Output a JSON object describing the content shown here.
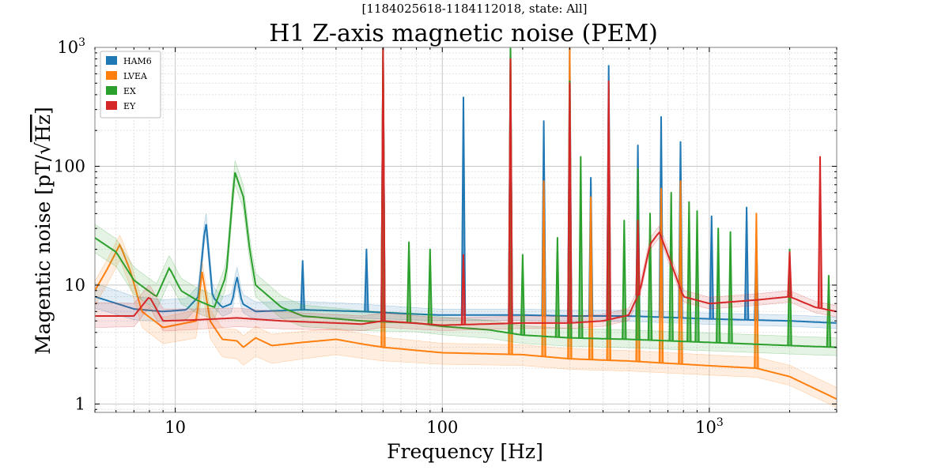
{
  "chart_data": {
    "type": "line",
    "subtitle": "[1184025618-1184112018, state: All]",
    "title": "H1 Z-axis magnetic noise (PEM)",
    "xlabel": "Frequency [Hz]",
    "ylabel_prefix": "Magentic noise [pT/",
    "ylabel_radicand": "Hz",
    "ylabel_suffix": "]",
    "x_scale": "log",
    "y_scale": "log",
    "xlim": [
      5,
      3000
    ],
    "ylim": [
      0.85,
      1000
    ],
    "grid": true,
    "legend_placement": "top-left",
    "x_ticks": [
      {
        "value": 10,
        "label": "10"
      },
      {
        "value": 100,
        "label": "100"
      },
      {
        "value": 1000,
        "label": "10",
        "exponent": "3"
      }
    ],
    "y_ticks": [
      {
        "value": 1,
        "label": "1"
      },
      {
        "value": 10,
        "label": "10"
      },
      {
        "value": 100,
        "label": "100"
      },
      {
        "value": 1000,
        "label": "10",
        "exponent": "3"
      }
    ],
    "series": [
      {
        "name": "HAM6",
        "color": "#1f77b4",
        "baseline": [
          [
            5,
            8.0
          ],
          [
            7,
            6.3
          ],
          [
            9,
            6.0
          ],
          [
            11,
            6.2
          ],
          [
            12.2,
            8
          ],
          [
            13,
            36
          ],
          [
            13.8,
            8
          ],
          [
            15,
            6.5
          ],
          [
            16.3,
            7
          ],
          [
            17,
            12
          ],
          [
            17.8,
            7
          ],
          [
            20,
            6.0
          ],
          [
            30,
            6.2
          ],
          [
            50,
            6.0
          ],
          [
            80,
            5.7
          ],
          [
            100,
            5.6
          ],
          [
            200,
            5.6
          ],
          [
            300,
            5.5
          ],
          [
            500,
            5.5
          ],
          [
            1000,
            5.2
          ],
          [
            2000,
            5.0
          ],
          [
            3000,
            4.8
          ]
        ],
        "band": [
          [
            5,
            0.8,
            1.3
          ],
          [
            20,
            0.85,
            1.2
          ],
          [
            100,
            0.9,
            1.12
          ],
          [
            3000,
            0.9,
            1.12
          ]
        ],
        "peaks": [
          [
            30,
            16
          ],
          [
            52,
            20
          ],
          [
            60,
            1000
          ],
          [
            120,
            380
          ],
          [
            180,
            1000
          ],
          [
            240,
            240
          ],
          [
            300,
            1000
          ],
          [
            360,
            80
          ],
          [
            420,
            700
          ],
          [
            540,
            150
          ],
          [
            660,
            260
          ],
          [
            780,
            160
          ],
          [
            1020,
            38
          ],
          [
            1380,
            45
          ],
          [
            1500,
            28
          ]
        ]
      },
      {
        "name": "LVEA",
        "color": "#ff7f0e",
        "baseline": [
          [
            5,
            9
          ],
          [
            5.6,
            14
          ],
          [
            6.2,
            22
          ],
          [
            6.8,
            13
          ],
          [
            7.5,
            6
          ],
          [
            9,
            4.4
          ],
          [
            12,
            5
          ],
          [
            12.6,
            13
          ],
          [
            13.5,
            5
          ],
          [
            15,
            3.5
          ],
          [
            17,
            3.4
          ],
          [
            18,
            3.0
          ],
          [
            20,
            3.6
          ],
          [
            23,
            3.1
          ],
          [
            30,
            3.3
          ],
          [
            40,
            3.5
          ],
          [
            50,
            3.2
          ],
          [
            60,
            3.0
          ],
          [
            100,
            2.7
          ],
          [
            200,
            2.6
          ],
          [
            300,
            2.4
          ],
          [
            500,
            2.3
          ],
          [
            1000,
            2.1
          ],
          [
            1500,
            2.0
          ],
          [
            2000,
            1.7
          ],
          [
            3000,
            1.1
          ]
        ],
        "band": [
          [
            5,
            0.75,
            1.2
          ],
          [
            20,
            0.7,
            1.25
          ],
          [
            100,
            0.8,
            1.2
          ],
          [
            3000,
            0.85,
            1.25
          ]
        ],
        "peaks": [
          [
            60,
            1000
          ],
          [
            180,
            1000
          ],
          [
            240,
            75
          ],
          [
            300,
            1000
          ],
          [
            360,
            55
          ],
          [
            420,
            60
          ],
          [
            540,
            80
          ],
          [
            660,
            65
          ],
          [
            780,
            75
          ],
          [
            1500,
            40
          ]
        ]
      },
      {
        "name": "EX",
        "color": "#2ca02c",
        "baseline": [
          [
            5,
            25
          ],
          [
            6,
            19
          ],
          [
            7,
            11
          ],
          [
            8.5,
            8
          ],
          [
            9.5,
            14
          ],
          [
            10.5,
            9
          ],
          [
            12,
            7.5
          ],
          [
            14,
            6.5
          ],
          [
            15.5,
            12
          ],
          [
            16.7,
            90
          ],
          [
            18,
            55
          ],
          [
            19,
            20
          ],
          [
            20,
            10
          ],
          [
            25,
            6.5
          ],
          [
            30,
            5.5
          ],
          [
            50,
            5.0
          ],
          [
            80,
            4.8
          ],
          [
            100,
            4.5
          ],
          [
            150,
            4.2
          ],
          [
            200,
            3.8
          ],
          [
            300,
            3.6
          ],
          [
            500,
            3.5
          ],
          [
            1000,
            3.3
          ],
          [
            2000,
            3.1
          ],
          [
            3000,
            3.0
          ]
        ],
        "band": [
          [
            5,
            0.75,
            1.3
          ],
          [
            20,
            0.8,
            1.25
          ],
          [
            100,
            0.85,
            1.2
          ],
          [
            3000,
            0.85,
            1.2
          ]
        ],
        "peaks": [
          [
            60,
            1000
          ],
          [
            75,
            23
          ],
          [
            90,
            20
          ],
          [
            180,
            1000
          ],
          [
            200,
            18
          ],
          [
            270,
            25
          ],
          [
            300,
            520
          ],
          [
            330,
            120
          ],
          [
            420,
            110
          ],
          [
            480,
            35
          ],
          [
            540,
            95
          ],
          [
            600,
            40
          ],
          [
            720,
            60
          ],
          [
            840,
            50
          ],
          [
            900,
            42
          ],
          [
            1080,
            30
          ],
          [
            1200,
            28
          ],
          [
            2000,
            20
          ],
          [
            2800,
            12
          ]
        ]
      },
      {
        "name": "EY",
        "color": "#d62728",
        "baseline": [
          [
            5,
            5.5
          ],
          [
            7,
            5.5
          ],
          [
            8,
            8
          ],
          [
            9,
            5
          ],
          [
            12,
            5.1
          ],
          [
            17,
            5.3
          ],
          [
            25,
            5.0
          ],
          [
            40,
            4.8
          ],
          [
            50,
            4.7
          ],
          [
            60,
            5.0
          ],
          [
            100,
            4.6
          ],
          [
            200,
            4.8
          ],
          [
            300,
            4.8
          ],
          [
            400,
            5.0
          ],
          [
            500,
            5.6
          ],
          [
            550,
            9
          ],
          [
            600,
            22
          ],
          [
            650,
            28
          ],
          [
            700,
            18
          ],
          [
            800,
            8
          ],
          [
            1000,
            7.0
          ],
          [
            1500,
            7.5
          ],
          [
            2000,
            8
          ],
          [
            2500,
            6.5
          ],
          [
            3000,
            6.0
          ]
        ],
        "band": [
          [
            5,
            0.8,
            1.3
          ],
          [
            20,
            0.85,
            1.2
          ],
          [
            100,
            0.9,
            1.15
          ],
          [
            3000,
            0.9,
            1.12
          ]
        ],
        "peaks": [
          [
            60,
            1000
          ],
          [
            120,
            18
          ],
          [
            180,
            800
          ],
          [
            300,
            500
          ],
          [
            420,
            520
          ],
          [
            540,
            35
          ],
          [
            2000,
            19
          ],
          [
            2600,
            120
          ]
        ]
      }
    ]
  }
}
